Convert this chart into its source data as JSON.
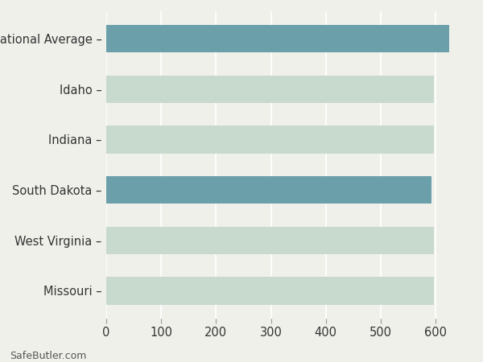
{
  "categories": [
    "Missouri",
    "West Virginia",
    "South Dakota",
    "Indiana",
    "Idaho",
    "National Average"
  ],
  "values": [
    597,
    597,
    592,
    597,
    597,
    625
  ],
  "bar_colors": [
    "#c8d9ce",
    "#c8d9ce",
    "#6b9faa",
    "#c8d9ce",
    "#c8d9ce",
    "#6b9faa"
  ],
  "background_color": "#f0f0eb",
  "grid_color": "#ffffff",
  "xlim": [
    0,
    660
  ],
  "xticks": [
    0,
    100,
    200,
    300,
    400,
    500,
    600
  ],
  "footer_text": "SafeButler.com",
  "bar_height": 0.55,
  "label_fontsize": 10.5,
  "tick_fontsize": 10.5
}
